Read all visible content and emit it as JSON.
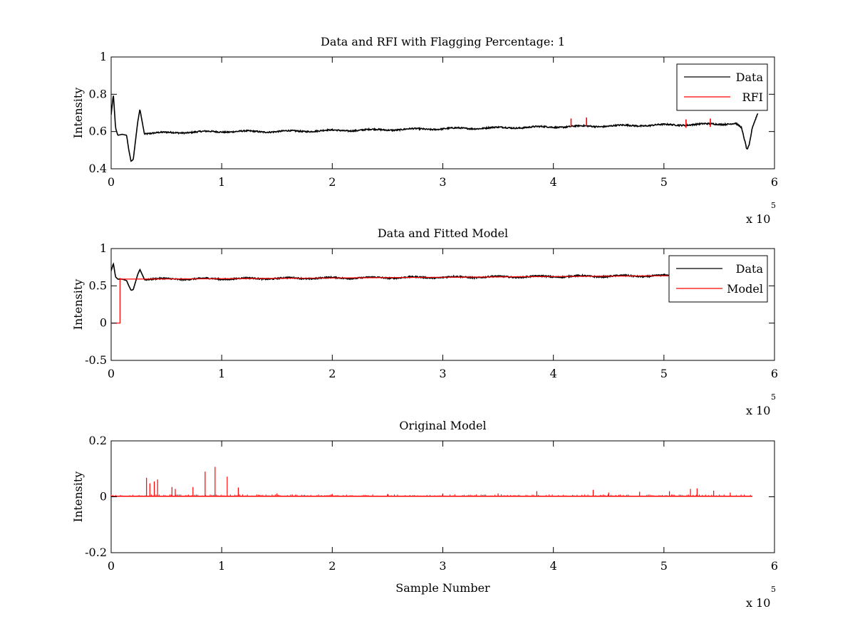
{
  "chart_data": [
    {
      "type": "line",
      "title": "Data and RFI with Flagging Percentage: 1",
      "xlabel": "",
      "ylabel": "Intensity",
      "xlim": [
        0,
        600000
      ],
      "ylim": [
        0.4,
        1
      ],
      "x_ticks": [
        "0",
        "1",
        "2",
        "3",
        "4",
        "5",
        "6"
      ],
      "y_ticks": [
        "0.4",
        "0.6",
        "0.8",
        "1"
      ],
      "x_multiplier": "x 10",
      "x_exponent": "5",
      "grid": false,
      "legend_position": "top-right",
      "series": [
        {
          "name": "Data",
          "color": "#000000",
          "x": [
            0,
            2000,
            4000,
            6000,
            10000,
            14000,
            16000,
            18000,
            20000,
            22000,
            24000,
            26000,
            30000,
            60000,
            100000,
            150000,
            200000,
            250000,
            300000,
            350000,
            400000,
            450000,
            500000,
            550000,
            565000,
            570000,
            573000,
            575000,
            577000,
            580000,
            585000
          ],
          "y": [
            0.69,
            0.8,
            0.62,
            0.58,
            0.585,
            0.58,
            0.5,
            0.44,
            0.45,
            0.55,
            0.65,
            0.72,
            0.59,
            0.595,
            0.6,
            0.6,
            0.605,
            0.61,
            0.615,
            0.62,
            0.625,
            0.63,
            0.635,
            0.64,
            0.645,
            0.62,
            0.55,
            0.5,
            0.52,
            0.62,
            0.7
          ]
        },
        {
          "name": "RFI",
          "color": "#ff0000",
          "points": [
            {
              "x": 416000,
              "y": 0.67
            },
            {
              "x": 430000,
              "y": 0.675
            },
            {
              "x": 520000,
              "y": 0.665
            },
            {
              "x": 542000,
              "y": 0.67
            }
          ]
        }
      ]
    },
    {
      "type": "line",
      "title": "Data and Fitted Model",
      "xlabel": "",
      "ylabel": "Intensity",
      "xlim": [
        0,
        600000
      ],
      "ylim": [
        -0.5,
        1
      ],
      "x_ticks": [
        "0",
        "1",
        "2",
        "3",
        "4",
        "5",
        "6"
      ],
      "y_ticks": [
        "-0.5",
        "0",
        "0.5",
        "1"
      ],
      "x_multiplier": "x 10",
      "x_exponent": "5",
      "grid": false,
      "legend_position": "top-right",
      "series": [
        {
          "name": "Data",
          "color": "#000000",
          "x": [
            0,
            2000,
            4000,
            6000,
            10000,
            14000,
            16000,
            18000,
            20000,
            22000,
            24000,
            26000,
            30000,
            100000,
            200000,
            300000,
            400000,
            500000,
            580000
          ],
          "y": [
            0.7,
            0.8,
            0.62,
            0.59,
            0.59,
            0.57,
            0.5,
            0.44,
            0.45,
            0.55,
            0.65,
            0.72,
            0.59,
            0.595,
            0.605,
            0.615,
            0.625,
            0.635,
            0.645
          ]
        },
        {
          "name": "Model",
          "color": "#ff0000",
          "x": [
            0,
            8000,
            8000,
            9000,
            100000,
            200000,
            300000,
            400000,
            500000,
            580000
          ],
          "y": [
            0,
            0,
            0.6,
            0.59,
            0.595,
            0.605,
            0.615,
            0.625,
            0.635,
            0.645
          ]
        }
      ]
    },
    {
      "type": "line",
      "title": "Original Model",
      "xlabel": "Sample Number",
      "ylabel": "Intensity",
      "xlim": [
        0,
        600000
      ],
      "ylim": [
        -0.2,
        0.2
      ],
      "x_ticks": [
        "0",
        "1",
        "2",
        "3",
        "4",
        "5",
        "6"
      ],
      "y_ticks": [
        "-0.2",
        "0",
        "0.2"
      ],
      "x_multiplier": "x 10",
      "x_exponent": "5",
      "grid": false,
      "series": [
        {
          "color": "#ff0000",
          "baseline": 0.002,
          "spikes": [
            {
              "x": 32000,
              "y": 0.068
            },
            {
              "x": 35000,
              "y": 0.048
            },
            {
              "x": 39000,
              "y": 0.055
            },
            {
              "x": 42000,
              "y": 0.062
            },
            {
              "x": 55000,
              "y": 0.035
            },
            {
              "x": 58000,
              "y": 0.028
            },
            {
              "x": 74000,
              "y": 0.035
            },
            {
              "x": 85000,
              "y": 0.09
            },
            {
              "x": 94000,
              "y": 0.107
            },
            {
              "x": 105000,
              "y": 0.072
            },
            {
              "x": 115000,
              "y": 0.033
            },
            {
              "x": 150000,
              "y": 0.012
            },
            {
              "x": 200000,
              "y": 0.01
            },
            {
              "x": 250000,
              "y": 0.01
            },
            {
              "x": 300000,
              "y": 0.012
            },
            {
              "x": 350000,
              "y": 0.012
            },
            {
              "x": 385000,
              "y": 0.02
            },
            {
              "x": 436000,
              "y": 0.025
            },
            {
              "x": 450000,
              "y": 0.015
            },
            {
              "x": 478000,
              "y": 0.018
            },
            {
              "x": 505000,
              "y": 0.02
            },
            {
              "x": 524000,
              "y": 0.028
            },
            {
              "x": 530000,
              "y": 0.03
            },
            {
              "x": 545000,
              "y": 0.022
            },
            {
              "x": 560000,
              "y": 0.015
            }
          ]
        }
      ]
    }
  ]
}
